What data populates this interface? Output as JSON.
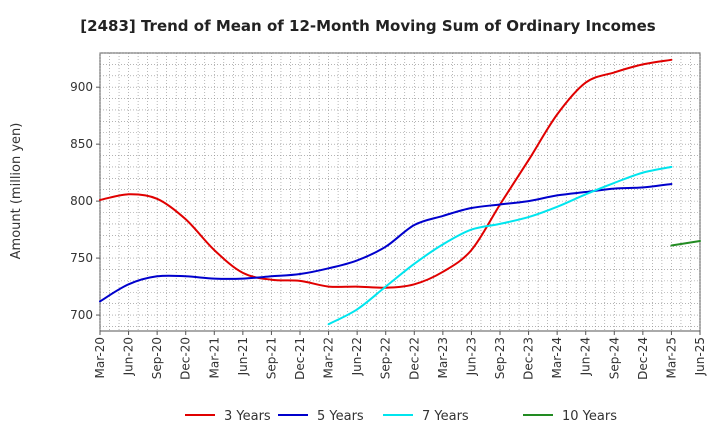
{
  "chart_data": {
    "type": "line",
    "title": "[2483]  Trend of Mean of 12-Month Moving Sum of Ordinary Incomes",
    "xlabel": "",
    "ylabel": "Amount (million yen)",
    "ylim": [
      686,
      930
    ],
    "yticks": [
      700,
      750,
      800,
      850,
      900
    ],
    "grid": true,
    "legend_position": "bottom",
    "categories": [
      "Mar-20",
      "Jun-20",
      "Sep-20",
      "Dec-20",
      "Mar-21",
      "Jun-21",
      "Sep-21",
      "Dec-21",
      "Mar-22",
      "Jun-22",
      "Sep-22",
      "Dec-22",
      "Mar-23",
      "Jun-23",
      "Sep-23",
      "Dec-23",
      "Mar-24",
      "Jun-24",
      "Sep-24",
      "Dec-24",
      "Mar-25",
      "Jun-25"
    ],
    "series": [
      {
        "name": "3 Years",
        "color": "#e00000",
        "values": [
          801,
          806,
          802,
          784,
          757,
          737,
          731,
          730,
          725,
          725,
          724,
          727,
          738,
          757,
          797,
          836,
          876,
          904,
          913,
          920,
          924,
          null
        ]
      },
      {
        "name": "5 Years",
        "color": "#0000cc",
        "values": [
          712,
          727,
          734,
          734,
          732,
          732,
          734,
          736,
          741,
          748,
          760,
          779,
          787,
          794,
          797,
          800,
          805,
          808,
          811,
          812,
          815,
          null
        ]
      },
      {
        "name": "7 Years",
        "color": "#00e5ee",
        "values": [
          null,
          null,
          null,
          null,
          null,
          null,
          null,
          null,
          692,
          705,
          725,
          745,
          762,
          775,
          780,
          786,
          795,
          806,
          816,
          825,
          830,
          null
        ]
      },
      {
        "name": "10 Years",
        "color": "#228b22",
        "values": [
          null,
          null,
          null,
          null,
          null,
          null,
          null,
          null,
          null,
          null,
          null,
          null,
          null,
          null,
          null,
          null,
          null,
          null,
          null,
          null,
          761,
          765
        ]
      }
    ]
  }
}
